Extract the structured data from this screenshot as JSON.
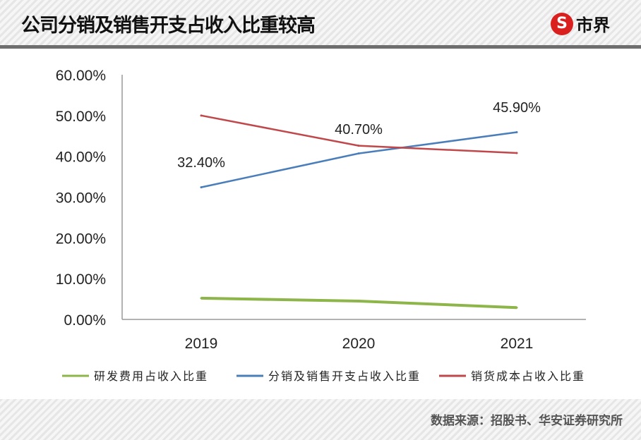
{
  "header": {
    "title": "公司分销及销售开支占收入比重较高",
    "logo_text": "市界",
    "logo_mark": "S"
  },
  "footer": {
    "source": "数据来源：招股书、华安证券研究所"
  },
  "chart_data": {
    "type": "line",
    "categories": [
      "2019",
      "2020",
      "2021"
    ],
    "ylim": [
      0,
      0.6
    ],
    "yticks": [
      "0.00%",
      "10.00%",
      "20.00%",
      "30.00%",
      "40.00%",
      "50.00%",
      "60.00%"
    ],
    "grid": false,
    "legend_position": "bottom",
    "series": [
      {
        "name": "研发费用占收入比重",
        "color": "#8db54a",
        "values": [
          0.052,
          0.045,
          0.029
        ],
        "labels": [
          "",
          "",
          ""
        ]
      },
      {
        "name": "分销及销售开支占收入比重",
        "color": "#4a7ebb",
        "values": [
          0.324,
          0.407,
          0.459
        ],
        "labels": [
          "32.40%",
          "40.70%",
          "45.90%"
        ]
      },
      {
        "name": "销货成本占收入比重",
        "color": "#c0474a",
        "values": [
          0.5,
          0.426,
          0.408
        ],
        "labels": [
          "",
          "",
          ""
        ]
      }
    ]
  }
}
